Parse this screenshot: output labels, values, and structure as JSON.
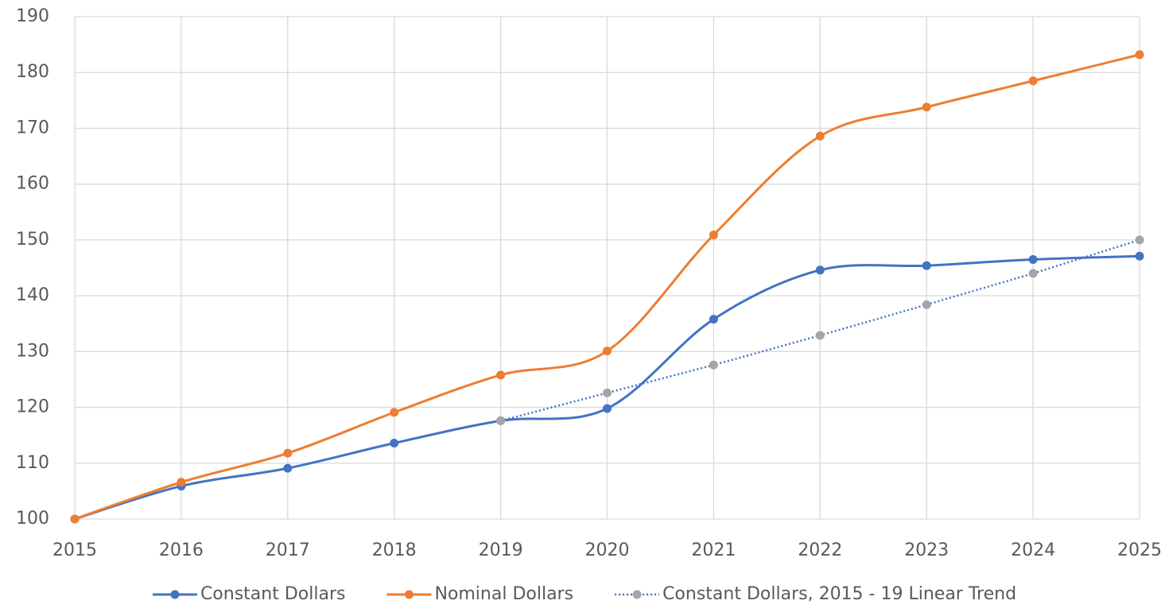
{
  "chart_data": {
    "type": "line",
    "x": [
      2015,
      2016,
      2017,
      2018,
      2019,
      2020,
      2021,
      2022,
      2023,
      2024,
      2025
    ],
    "series": [
      {
        "name": "Constant Dollars",
        "color": "#4472c4",
        "smooth": true,
        "values": [
          100,
          105.9,
          109.1,
          113.6,
          117.6,
          119.8,
          135.8,
          144.6,
          145.4,
          146.5,
          147.1
        ]
      },
      {
        "name": "Nominal Dollars",
        "color": "#ed7d31",
        "smooth": true,
        "values": [
          100,
          106.6,
          111.8,
          119.1,
          125.8,
          130.1,
          150.9,
          168.6,
          173.8,
          178.5,
          183.2
        ]
      },
      {
        "name": "Constant Dollars, 2015 - 19 Linear Trend",
        "color": "#4472c4",
        "marker_color": "#a5a5a5",
        "smooth": false,
        "dash": "dotted",
        "values": [
          null,
          null,
          null,
          null,
          117.6,
          122.6,
          127.6,
          132.9,
          138.4,
          144.0,
          150.0
        ]
      }
    ],
    "xlim": [
      2015,
      2025
    ],
    "xticks": [
      2015,
      2016,
      2017,
      2018,
      2019,
      2020,
      2021,
      2022,
      2023,
      2024,
      2025
    ],
    "ylim": [
      100,
      190
    ],
    "yticks": [
      100,
      110,
      120,
      130,
      140,
      150,
      160,
      170,
      180,
      190
    ],
    "grid": true,
    "legend": "bottom"
  }
}
